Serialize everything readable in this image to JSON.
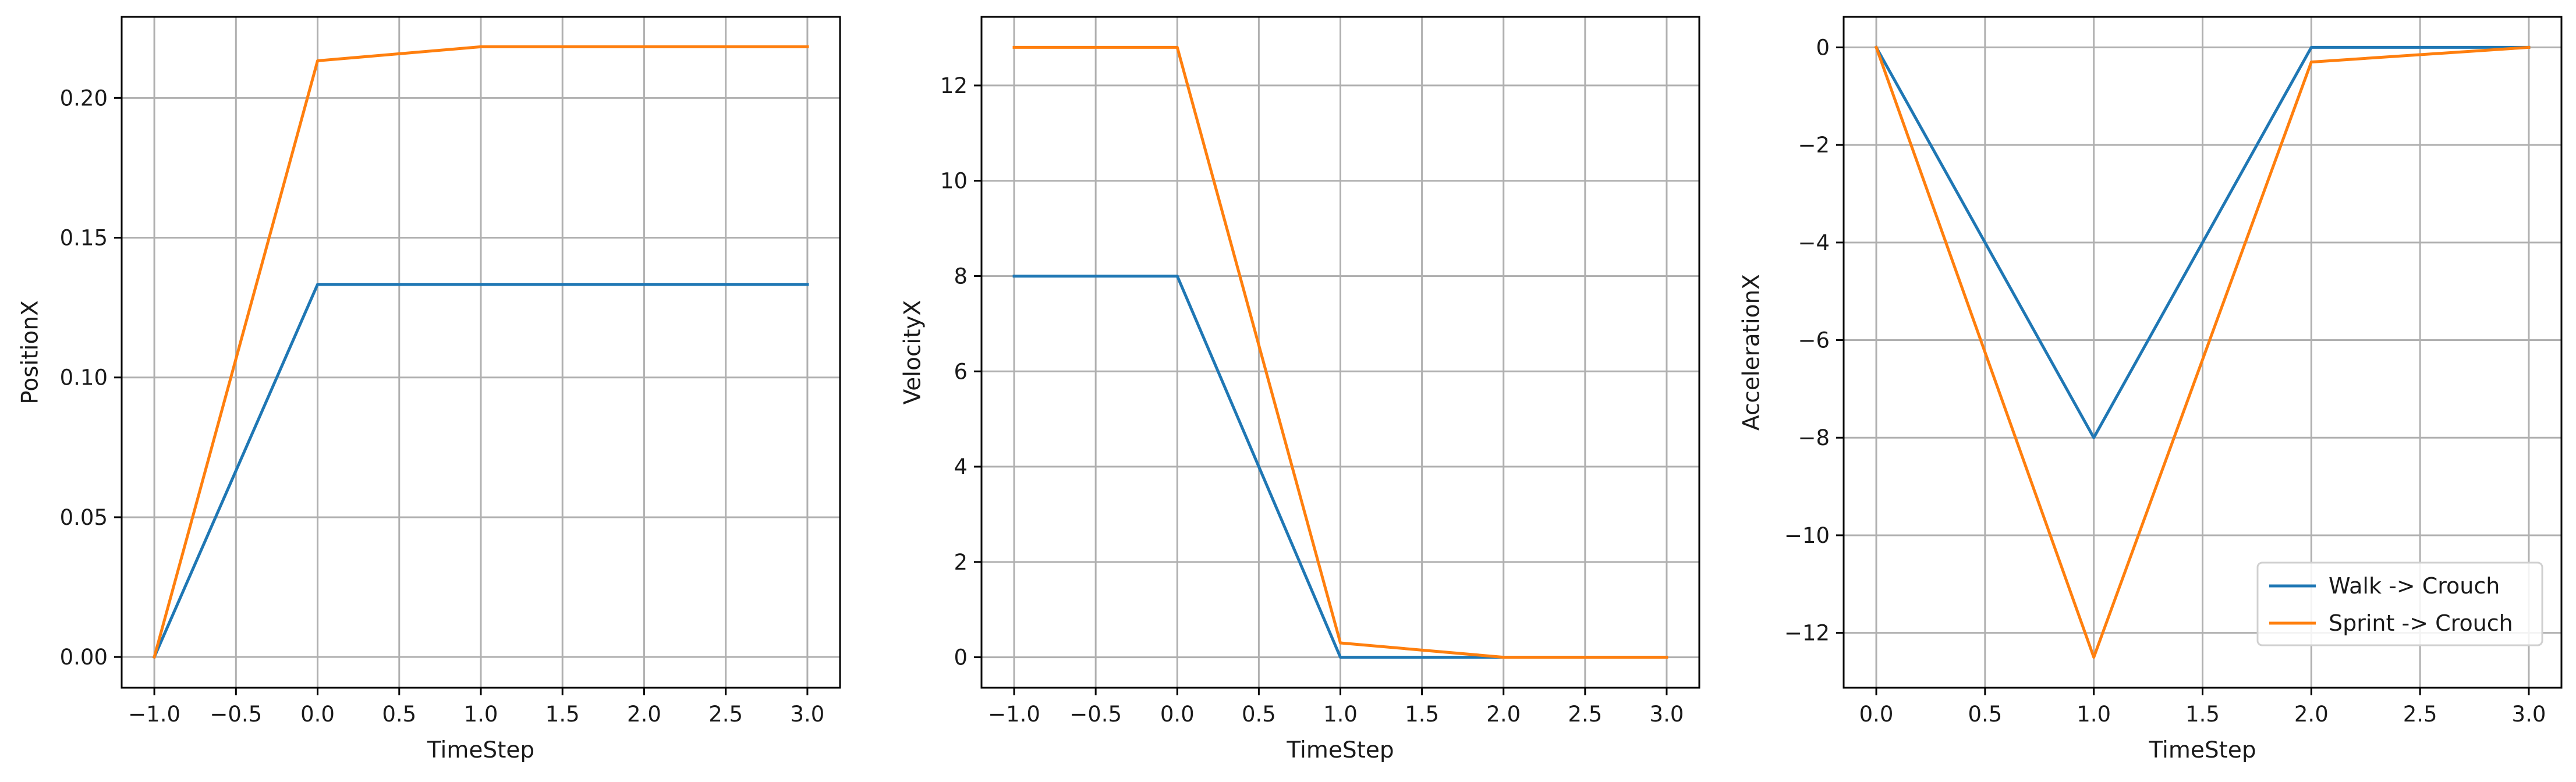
{
  "chart_data": [
    {
      "type": "line",
      "title": "",
      "xlabel": "TimeStep",
      "ylabel": "PositionX",
      "xlim": [
        -1.2,
        3.2
      ],
      "ylim": [
        -0.011,
        0.229
      ],
      "xticks": [
        -1.0,
        -0.5,
        0.0,
        0.5,
        1.0,
        1.5,
        2.0,
        2.5,
        3.0
      ],
      "xtick_labels": [
        "−1.0",
        "−0.5",
        "0.0",
        "0.5",
        "1.0",
        "1.5",
        "2.0",
        "2.5",
        "3.0"
      ],
      "yticks": [
        0.0,
        0.05,
        0.1,
        0.15,
        0.2
      ],
      "ytick_labels": [
        "0.00",
        "0.05",
        "0.10",
        "0.15",
        "0.20"
      ],
      "grid": true,
      "x": [
        -1,
        0,
        1,
        2,
        3
      ],
      "series": [
        {
          "name": "Walk -> Crouch",
          "color": "#1f77b4",
          "values": [
            0.0,
            0.1333,
            0.1333,
            0.1333,
            0.1333
          ]
        },
        {
          "name": "Sprint -> Crouch",
          "color": "#ff7f0e",
          "values": [
            0.0,
            0.2133,
            0.2183,
            0.2183,
            0.2183
          ]
        }
      ]
    },
    {
      "type": "line",
      "title": "",
      "xlabel": "TimeStep",
      "ylabel": "VelocityX",
      "xlim": [
        -1.2,
        3.2
      ],
      "ylim": [
        -0.64,
        13.44
      ],
      "xticks": [
        -1.0,
        -0.5,
        0.0,
        0.5,
        1.0,
        1.5,
        2.0,
        2.5,
        3.0
      ],
      "xtick_labels": [
        "−1.0",
        "−0.5",
        "0.0",
        "0.5",
        "1.0",
        "1.5",
        "2.0",
        "2.5",
        "3.0"
      ],
      "yticks": [
        0,
        2,
        4,
        6,
        8,
        10,
        12
      ],
      "ytick_labels": [
        "0",
        "2",
        "4",
        "6",
        "8",
        "10",
        "12"
      ],
      "grid": true,
      "x": [
        -1,
        0,
        1,
        2,
        3
      ],
      "series": [
        {
          "name": "Walk -> Crouch",
          "color": "#1f77b4",
          "values": [
            8.0,
            8.0,
            0.0,
            0.0,
            0.0
          ]
        },
        {
          "name": "Sprint -> Crouch",
          "color": "#ff7f0e",
          "values": [
            12.8,
            12.8,
            0.3,
            0.0,
            0.0
          ]
        }
      ]
    },
    {
      "type": "line",
      "title": "",
      "xlabel": "TimeStep",
      "ylabel": "AccelerationX",
      "xlim": [
        -0.15,
        3.15
      ],
      "ylim": [
        -13.125,
        0.625
      ],
      "xticks": [
        0.0,
        0.5,
        1.0,
        1.5,
        2.0,
        2.5,
        3.0
      ],
      "xtick_labels": [
        "0.0",
        "0.5",
        "1.0",
        "1.5",
        "2.0",
        "2.5",
        "3.0"
      ],
      "yticks": [
        0,
        -2,
        -4,
        -6,
        -8,
        -10,
        -12
      ],
      "ytick_labels": [
        "0",
        "−2",
        "−4",
        "−6",
        "−8",
        "−10",
        "−12"
      ],
      "grid": true,
      "legend": "lower-right",
      "x": [
        0,
        1,
        2,
        3
      ],
      "series": [
        {
          "name": "Walk -> Crouch",
          "color": "#1f77b4",
          "values": [
            0.0,
            -8.0,
            0.0,
            0.0
          ]
        },
        {
          "name": "Sprint -> Crouch",
          "color": "#ff7f0e",
          "values": [
            0.0,
            -12.5,
            -0.3,
            0.0
          ]
        }
      ]
    }
  ]
}
